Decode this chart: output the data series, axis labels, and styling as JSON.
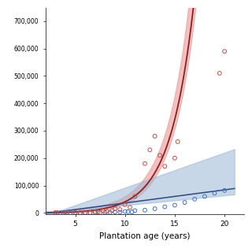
{
  "xlabel": "Plantation age (years)",
  "xlim": [
    2,
    22
  ],
  "ylim": [
    -5000,
    750000
  ],
  "yticks": [
    0,
    100000,
    200000,
    300000,
    400000,
    500000,
    600000,
    700000
  ],
  "ytick_labels": [
    "0",
    "100,000",
    "200,000",
    "300,000",
    "400,000",
    "500,000",
    "600,000",
    "700,000"
  ],
  "xticks": [
    5,
    10,
    15,
    20
  ],
  "background_color": "#ffffff",
  "red_dot_color": "#c0504d",
  "blue_dot_color": "#4472c4",
  "red_line_color": "#8b2020",
  "blue_line_color": "#2c4a7c",
  "red_band_color": "#e8a09e",
  "blue_band_color": "#9bb7d4",
  "red_dots_x": [
    3,
    3.2,
    3.8,
    4.2,
    5,
    5.5,
    6,
    6.5,
    7,
    7.3,
    7.8,
    8.2,
    8.7,
    9,
    9.5,
    10,
    10.5,
    11,
    12,
    12.5,
    13,
    13.5,
    14,
    15,
    15.3,
    19.5,
    20
  ],
  "red_dots_y": [
    0,
    200,
    100,
    300,
    500,
    300,
    1000,
    800,
    4000,
    3000,
    7000,
    5000,
    8000,
    15000,
    12000,
    30000,
    20000,
    60000,
    180000,
    230000,
    280000,
    210000,
    170000,
    200000,
    260000,
    510000,
    590000
  ],
  "blue_dots_x": [
    3,
    3.5,
    4,
    4.5,
    5,
    5.5,
    6,
    6.5,
    7,
    7.5,
    8,
    8.5,
    9,
    9.5,
    10,
    10.3,
    10.7,
    11,
    12,
    13,
    14,
    15,
    16,
    17,
    18,
    19,
    20
  ],
  "blue_dots_y": [
    0,
    100,
    200,
    100,
    800,
    200,
    500,
    300,
    1500,
    1000,
    2000,
    1500,
    3000,
    2500,
    5000,
    4000,
    3000,
    8000,
    10000,
    15000,
    22000,
    28000,
    38000,
    50000,
    60000,
    72000,
    82000
  ],
  "red_a": 1800,
  "red_b": 0.42,
  "red_x0": 2.5,
  "blue_slope": 4800,
  "blue_intercept": -12000
}
